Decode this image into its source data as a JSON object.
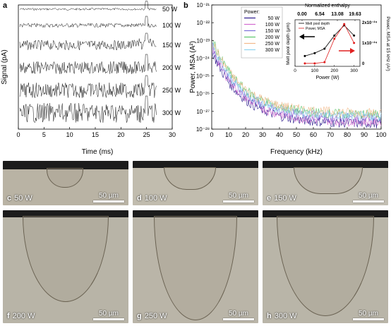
{
  "panel_a": {
    "letter": "a",
    "ylabel": "Signal (pA)",
    "xlabel": "Time (ms)",
    "xticks": [
      "0",
      "5",
      "10",
      "15",
      "20",
      "25",
      "30"
    ],
    "series_labels": [
      "50 W",
      "100 W",
      "150 W",
      "200 W",
      "250 W",
      "300 W"
    ]
  },
  "panel_b": {
    "letter": "b",
    "ylabel": "Power, MSA (A²)",
    "xlabel": "Frequency (kHz)",
    "xticks": [
      "0",
      "10",
      "20",
      "30",
      "40",
      "50",
      "60",
      "70",
      "80",
      "90",
      "100"
    ],
    "yticks": [
      "10⁻²¹",
      "10⁻²²",
      "10⁻²³",
      "10⁻²⁴",
      "10⁻²⁵",
      "10⁻²⁶",
      "10⁻²⁷",
      "10⁻²⁸"
    ],
    "legend_title": "Power:",
    "legend": [
      {
        "label": "50 W",
        "color": "#2b1a8c"
      },
      {
        "label": "100 W",
        "color": "#d36ad1"
      },
      {
        "label": "150 W",
        "color": "#7a6fd8"
      },
      {
        "label": "200 W",
        "color": "#5bc66b"
      },
      {
        "label": "250 W",
        "color": "#f2b98a"
      },
      {
        "label": "300 W",
        "color": "#8fd3ee"
      }
    ]
  },
  "inset": {
    "top_title": "Normalized enthalpy",
    "top_ticks": [
      "0.00",
      "6.54",
      "13.08",
      "19.63"
    ],
    "xlabel": "Power (W)",
    "xticks": [
      "0",
      "100",
      "200",
      "300"
    ],
    "left_ylabel": "Melt pool depth (μm)",
    "right_ylabel": "Power, MSA at 15 kHz (A²)",
    "right_ticks": [
      "2x10⁻²⁴",
      "1x10⁻²⁴",
      "0"
    ],
    "legend": [
      "Melt pool depth",
      "Power, MSA"
    ]
  },
  "chart_data": [
    {
      "type": "line",
      "xlabel": "Time (ms)",
      "ylabel": "Signal (pA)",
      "xlim": [
        0,
        30
      ],
      "series": [
        {
          "name": "50 W"
        },
        {
          "name": "100 W"
        },
        {
          "name": "150 W"
        },
        {
          "name": "200 W"
        },
        {
          "name": "250 W"
        },
        {
          "name": "300 W"
        }
      ]
    },
    {
      "type": "line",
      "xlabel": "Frequency (kHz)",
      "ylabel": "Power, MSA (A²)",
      "xlim": [
        0,
        100
      ],
      "ylim": [
        1e-28,
        1e-21
      ],
      "yscale": "log",
      "series": [
        {
          "name": "50 W",
          "color": "#2b1a8c"
        },
        {
          "name": "100 W",
          "color": "#d36ad1"
        },
        {
          "name": "150 W",
          "color": "#7a6fd8"
        },
        {
          "name": "200 W",
          "color": "#5bc66b"
        },
        {
          "name": "250 W",
          "color": "#f2b98a"
        },
        {
          "name": "300 W",
          "color": "#8fd3ee"
        }
      ]
    },
    {
      "type": "line",
      "xlabel": "Power (W)",
      "x": [
        50,
        100,
        150,
        200,
        250,
        300
      ],
      "series": [
        {
          "name": "Melt pool depth",
          "color": "#000000"
        },
        {
          "name": "Power, MSA",
          "color": "#e02020"
        }
      ]
    }
  ],
  "micrographs": [
    {
      "letter": "c",
      "power": "50 W",
      "scale": "50 µm"
    },
    {
      "letter": "d",
      "power": "100 W",
      "scale": "50 µm"
    },
    {
      "letter": "e",
      "power": "150 W",
      "scale": "50 µm"
    },
    {
      "letter": "f",
      "power": "200 W",
      "scale": "50 µm"
    },
    {
      "letter": "g",
      "power": "250 W",
      "scale": "50 µm"
    },
    {
      "letter": "h",
      "power": "300 W",
      "scale": "50 µm"
    }
  ]
}
